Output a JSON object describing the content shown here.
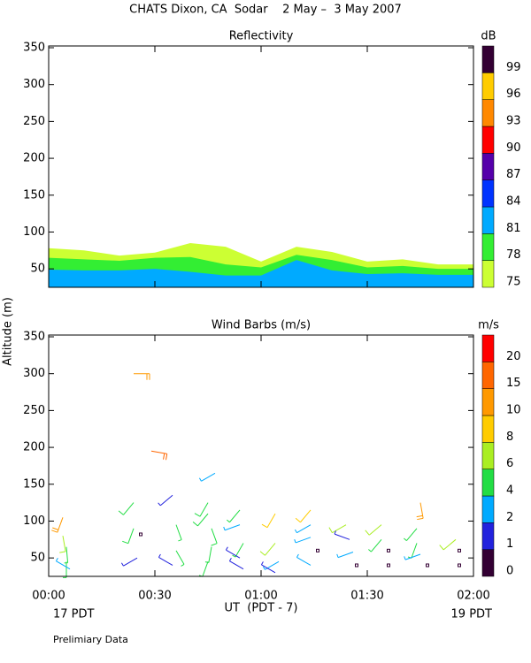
{
  "header": {
    "title": "CHATS Dixon, CA  Sodar    2 May –  3 May 2007"
  },
  "chart_data": [
    {
      "type": "area",
      "title": "Reflectivity",
      "ylabel": "Altitude (m)",
      "xlim": [
        0,
        120
      ],
      "ylim": [
        25,
        350
      ],
      "xticks": [
        0,
        30,
        60,
        90,
        120
      ],
      "yticks": [
        50,
        100,
        150,
        200,
        250,
        300,
        350
      ],
      "x": [
        0,
        10,
        20,
        30,
        40,
        50,
        60,
        70,
        80,
        90,
        100,
        110,
        120
      ],
      "series": [
        {
          "color": "#ccff33",
          "values": [
            78,
            75,
            68,
            72,
            85,
            80,
            60,
            80,
            73,
            60,
            63,
            56,
            56
          ]
        },
        {
          "color": "#33ee33",
          "values": [
            65,
            63,
            61,
            65,
            66,
            56,
            52,
            69,
            62,
            52,
            54,
            50,
            50
          ]
        },
        {
          "color": "#00aaff",
          "values": [
            49,
            48,
            48,
            50,
            46,
            41,
            41,
            62,
            48,
            43,
            44,
            42,
            42
          ]
        }
      ],
      "colorbar": {
        "label": "dB",
        "ticks": [
          75,
          78,
          81,
          84,
          87,
          90,
          93,
          96,
          99
        ],
        "colors": [
          "#ccff33",
          "#33ee33",
          "#00aaff",
          "#0033ff",
          "#5500aa",
          "#ff0000",
          "#ff8800",
          "#ffcc00",
          "#330033"
        ]
      }
    },
    {
      "type": "barb",
      "title": "Wind Barbs (m/s)",
      "xlabel": "UT  (PDT - 7)",
      "start_label": "17 PDT",
      "end_label": "19 PDT",
      "xlim": [
        0,
        120
      ],
      "ylim": [
        25,
        350
      ],
      "xticks": [
        {
          "value": 0,
          "label": "00:00"
        },
        {
          "value": 30,
          "label": "00:30"
        },
        {
          "value": 60,
          "label": "01:00"
        },
        {
          "value": 90,
          "label": "01:30"
        },
        {
          "value": 120,
          "label": "02:00"
        }
      ],
      "yticks": [
        50,
        100,
        150,
        200,
        250,
        300,
        350
      ],
      "x": [
        4,
        4,
        5,
        5,
        6,
        24,
        24,
        24,
        26,
        25,
        29,
        35,
        36,
        36,
        35,
        45,
        45,
        46,
        46,
        45,
        47,
        54,
        54,
        55,
        54,
        55,
        64,
        64,
        65,
        64,
        74,
        74,
        74,
        76,
        74,
        84,
        85,
        86,
        87,
        94,
        94,
        96,
        96,
        105,
        104,
        104,
        105,
        107,
        115,
        116,
        116
      ],
      "y": [
        105,
        80,
        65,
        45,
        35,
        300,
        125,
        90,
        82,
        50,
        195,
        135,
        95,
        60,
        40,
        125,
        110,
        90,
        65,
        45,
        165,
        115,
        95,
        70,
        50,
        35,
        110,
        70,
        45,
        30,
        115,
        95,
        78,
        60,
        40,
        95,
        75,
        58,
        40,
        95,
        75,
        60,
        40,
        125,
        90,
        70,
        55,
        40,
        75,
        60,
        40
      ],
      "speed": [
        10,
        6,
        4,
        4,
        2,
        12,
        5,
        5,
        0.5,
        1,
        18,
        1,
        4,
        4,
        1,
        5,
        5,
        5,
        4,
        4,
        3,
        4,
        3,
        4,
        1,
        1,
        9,
        6,
        2,
        1,
        9,
        3,
        2,
        0.5,
        2,
        7,
        1,
        2,
        0.5,
        6,
        4,
        0.5,
        0.5,
        12,
        4,
        4,
        2,
        0.5,
        6,
        0.5,
        0.5
      ],
      "direction": [
        200,
        170,
        175,
        180,
        300,
        90,
        220,
        200,
        0,
        240,
        100,
        230,
        160,
        150,
        300,
        210,
        220,
        160,
        190,
        200,
        240,
        220,
        250,
        210,
        300,
        300,
        210,
        220,
        240,
        300,
        220,
        240,
        250,
        0,
        300,
        240,
        290,
        250,
        0,
        230,
        220,
        0,
        0,
        170,
        220,
        200,
        250,
        0,
        230,
        0,
        0
      ],
      "colorbar": {
        "label": "m/s",
        "ticks": [
          0,
          1,
          2,
          4,
          6,
          8,
          10,
          15,
          20
        ],
        "colors": [
          "#330033",
          "#2222dd",
          "#00aaff",
          "#22dd44",
          "#aaee22",
          "#ffcc00",
          "#ff9900",
          "#ff6600",
          "#ff0000"
        ]
      }
    }
  ],
  "footer": "Prelimiary Data"
}
